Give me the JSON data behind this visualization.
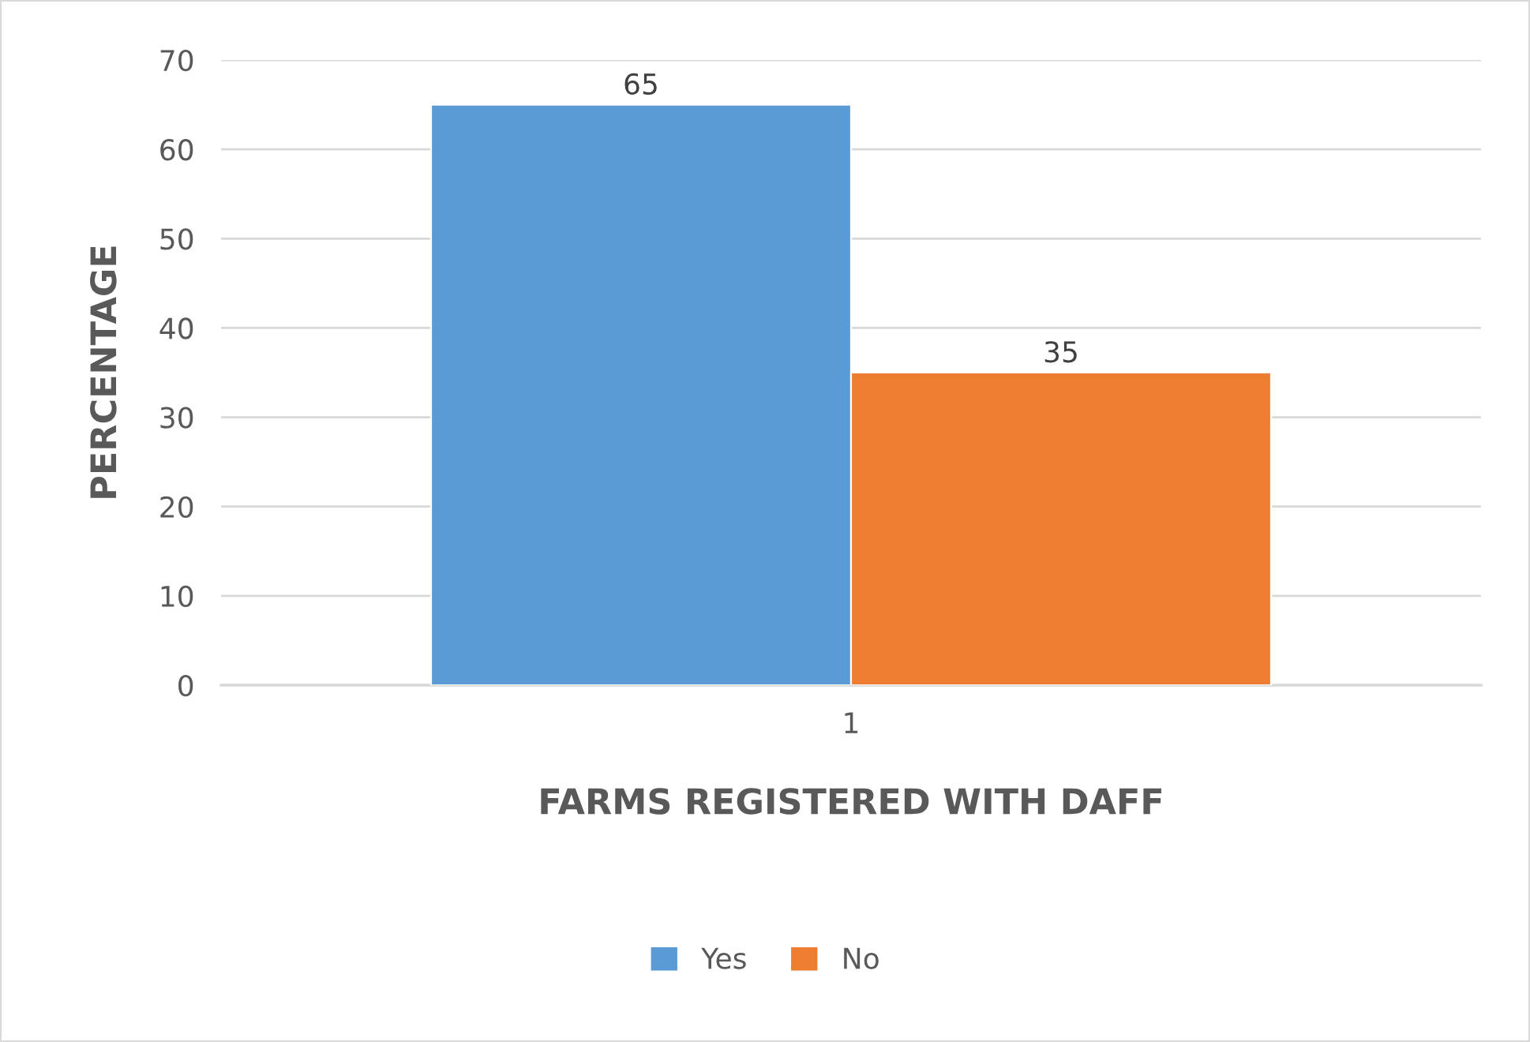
{
  "chart_data": {
    "type": "bar",
    "xlabel": "FARMS REGISTERED WITH DAFF",
    "ylabel": "PERCENTAGE",
    "categories": [
      "1"
    ],
    "series": [
      {
        "name": "Yes",
        "color": "#5b9bd5",
        "values": [
          65
        ]
      },
      {
        "name": "No",
        "color": "#ed7d31",
        "values": [
          35
        ]
      }
    ],
    "ylim": [
      0,
      70
    ],
    "yticks": [
      0,
      10,
      20,
      30,
      40,
      50,
      60,
      70
    ],
    "grid": "y",
    "legend": "bottom",
    "data_labels": true
  }
}
